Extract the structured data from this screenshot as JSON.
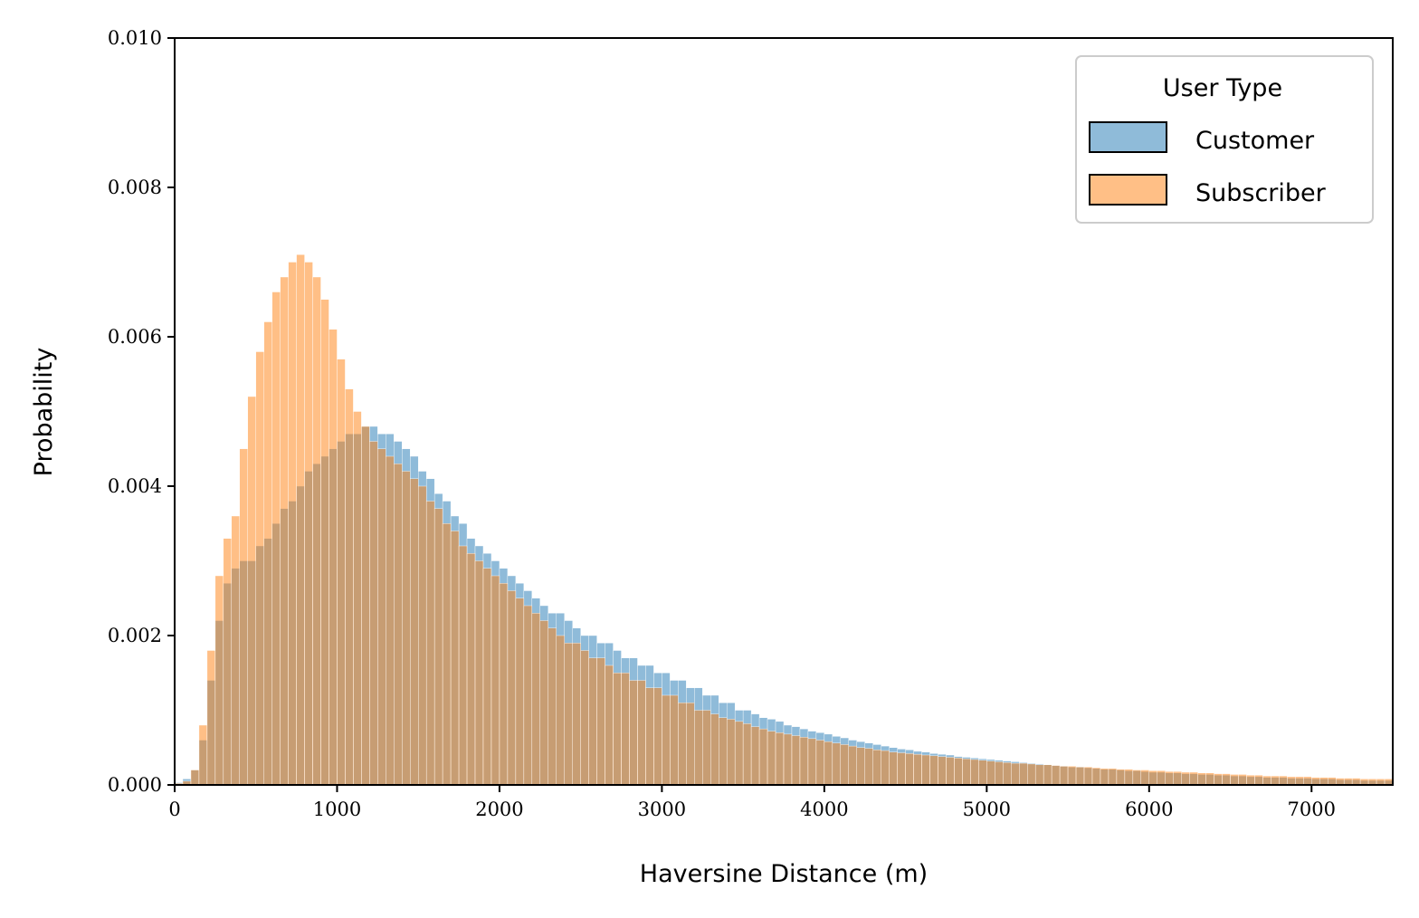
{
  "chart_data": {
    "type": "bar",
    "subtype": "overlaid-histogram",
    "title": "",
    "xlabel": "Haversine Distance (m)",
    "ylabel": "Probability",
    "xlim": [
      0,
      7500
    ],
    "ylim": [
      0,
      0.01
    ],
    "x_ticks": [
      0,
      1000,
      2000,
      3000,
      4000,
      5000,
      6000,
      7000
    ],
    "x_tick_labels": [
      "0",
      "1000",
      "2000",
      "3000",
      "4000",
      "5000",
      "6000",
      "7000"
    ],
    "y_ticks": [
      0,
      0.002,
      0.004,
      0.006,
      0.008,
      0.01
    ],
    "y_tick_labels": [
      "0.000",
      "0.002",
      "0.004",
      "0.006",
      "0.008",
      "0.010"
    ],
    "bin_width": 50,
    "grid": false,
    "legend": {
      "title": "User Type",
      "placement": "top-right",
      "entries": [
        "Customer",
        "Subscriber"
      ]
    },
    "categories": [
      25,
      75,
      125,
      175,
      225,
      275,
      325,
      375,
      425,
      475,
      525,
      575,
      625,
      675,
      725,
      775,
      825,
      875,
      925,
      975,
      1025,
      1075,
      1125,
      1175,
      1225,
      1275,
      1325,
      1375,
      1425,
      1475,
      1525,
      1575,
      1625,
      1675,
      1725,
      1775,
      1825,
      1875,
      1925,
      1975,
      2025,
      2075,
      2125,
      2175,
      2225,
      2275,
      2325,
      2375,
      2425,
      2475,
      2525,
      2575,
      2625,
      2675,
      2725,
      2775,
      2825,
      2875,
      2925,
      2975,
      3025,
      3075,
      3125,
      3175,
      3225,
      3275,
      3325,
      3375,
      3425,
      3475,
      3525,
      3575,
      3625,
      3675,
      3725,
      3775,
      3825,
      3875,
      3925,
      3975,
      4025,
      4075,
      4125,
      4175,
      4225,
      4275,
      4325,
      4375,
      4425,
      4475,
      4525,
      4575,
      4625,
      4675,
      4725,
      4775,
      4825,
      4875,
      4925,
      4975,
      5025,
      5075,
      5125,
      5175,
      5225,
      5275,
      5325,
      5375,
      5425,
      5475,
      5525,
      5575,
      5625,
      5675,
      5725,
      5775,
      5825,
      5875,
      5925,
      5975,
      6025,
      6075,
      6125,
      6175,
      6225,
      6275,
      6325,
      6375,
      6425,
      6475,
      6525,
      6575,
      6625,
      6675,
      6725,
      6775,
      6825,
      6875,
      6925,
      6975,
      7025,
      7075,
      7125,
      7175,
      7225,
      7275,
      7325,
      7375,
      7425,
      7475
    ],
    "series": [
      {
        "name": "Customer",
        "color": "#1f77b4",
        "values": [
          3e-05,
          8e-05,
          0.0002,
          0.0006,
          0.0014,
          0.0022,
          0.0027,
          0.0029,
          0.003,
          0.003,
          0.0032,
          0.0033,
          0.0035,
          0.0037,
          0.0038,
          0.004,
          0.0042,
          0.0043,
          0.0044,
          0.0045,
          0.0046,
          0.0047,
          0.0047,
          0.0048,
          0.0048,
          0.0047,
          0.0047,
          0.0046,
          0.0045,
          0.0044,
          0.0042,
          0.0041,
          0.0039,
          0.0038,
          0.0036,
          0.0035,
          0.0033,
          0.0032,
          0.0031,
          0.003,
          0.0029,
          0.0028,
          0.0027,
          0.0026,
          0.0025,
          0.0024,
          0.0023,
          0.0023,
          0.0022,
          0.0021,
          0.002,
          0.002,
          0.0019,
          0.0019,
          0.0018,
          0.0017,
          0.0017,
          0.0016,
          0.0016,
          0.0015,
          0.0015,
          0.0014,
          0.0014,
          0.0013,
          0.0013,
          0.0012,
          0.0012,
          0.0011,
          0.0011,
          0.001,
          0.001,
          0.00095,
          0.0009,
          0.00088,
          0.00085,
          0.0008,
          0.00078,
          0.00075,
          0.00072,
          0.0007,
          0.00068,
          0.00065,
          0.00063,
          0.0006,
          0.00058,
          0.00056,
          0.00054,
          0.00052,
          0.0005,
          0.00048,
          0.00047,
          0.00045,
          0.00044,
          0.00042,
          0.00041,
          0.0004,
          0.00038,
          0.00037,
          0.00036,
          0.00035,
          0.00034,
          0.00033,
          0.00032,
          0.00031,
          0.0003,
          0.00029,
          0.00028,
          0.00027,
          0.00026,
          0.00025,
          0.00024,
          0.00024,
          0.00023,
          0.00022,
          0.00021,
          0.00021,
          0.0002,
          0.00019,
          0.00019,
          0.00018,
          0.00017,
          0.00017,
          0.00016,
          0.00016,
          0.00015,
          0.00015,
          0.00014,
          0.00014,
          0.00013,
          0.00013,
          0.00012,
          0.00012,
          0.00011,
          0.00011,
          0.0001,
          0.0001,
          0.0001,
          9e-05,
          9e-05,
          9e-05,
          8e-05,
          8e-05,
          8e-05,
          7e-05,
          7e-05,
          7e-05,
          6e-05,
          6e-05,
          6e-05,
          6e-05
        ]
      },
      {
        "name": "Subscriber",
        "color": "#ff7f0e",
        "values": [
          2e-05,
          5e-05,
          0.0002,
          0.0008,
          0.0018,
          0.0028,
          0.0033,
          0.0036,
          0.0045,
          0.0052,
          0.0058,
          0.0062,
          0.0066,
          0.0068,
          0.007,
          0.0071,
          0.007,
          0.0068,
          0.0065,
          0.0061,
          0.0057,
          0.0053,
          0.005,
          0.0048,
          0.0046,
          0.0045,
          0.0044,
          0.0043,
          0.0042,
          0.0041,
          0.004,
          0.0038,
          0.0037,
          0.0035,
          0.0034,
          0.0032,
          0.0031,
          0.003,
          0.0029,
          0.0028,
          0.0027,
          0.0026,
          0.0025,
          0.0024,
          0.0023,
          0.0022,
          0.0021,
          0.002,
          0.0019,
          0.0019,
          0.0018,
          0.0017,
          0.0017,
          0.0016,
          0.0015,
          0.0015,
          0.0014,
          0.0014,
          0.0013,
          0.0013,
          0.0012,
          0.0012,
          0.0011,
          0.0011,
          0.001,
          0.001,
          0.00095,
          0.0009,
          0.00088,
          0.00085,
          0.00082,
          0.00078,
          0.00075,
          0.00072,
          0.0007,
          0.00068,
          0.00066,
          0.00064,
          0.00062,
          0.0006,
          0.00058,
          0.00056,
          0.00054,
          0.00052,
          0.0005,
          0.00049,
          0.00047,
          0.00046,
          0.00044,
          0.00043,
          0.00042,
          0.00041,
          0.0004,
          0.00039,
          0.00038,
          0.00037,
          0.00036,
          0.00035,
          0.00034,
          0.00033,
          0.00032,
          0.00031,
          0.0003,
          0.00029,
          0.00029,
          0.00028,
          0.00027,
          0.00027,
          0.00026,
          0.00025,
          0.00025,
          0.00024,
          0.00024,
          0.00023,
          0.00022,
          0.00022,
          0.00021,
          0.00021,
          0.0002,
          0.0002,
          0.00019,
          0.00019,
          0.00018,
          0.00018,
          0.00017,
          0.00017,
          0.00016,
          0.00016,
          0.00015,
          0.00015,
          0.00014,
          0.00014,
          0.00013,
          0.00013,
          0.00012,
          0.00012,
          0.00012,
          0.00011,
          0.00011,
          0.00011,
          0.0001,
          0.0001,
          0.0001,
          9e-05,
          9e-05,
          9e-05,
          8e-05,
          8e-05,
          8e-05,
          8e-05
        ]
      }
    ]
  }
}
